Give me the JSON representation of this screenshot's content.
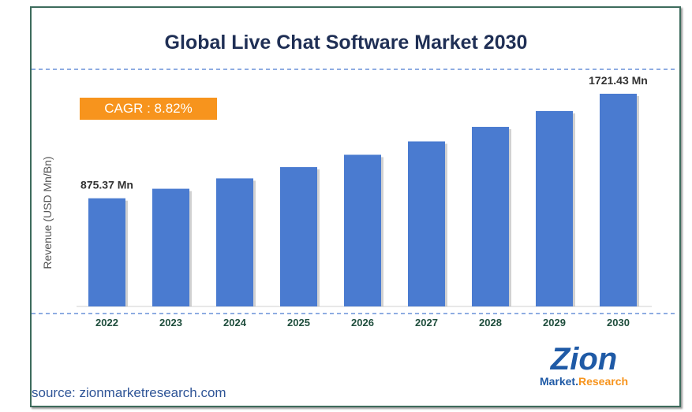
{
  "chart_data": {
    "type": "bar",
    "title": "Global Live Chat Software Market 2030",
    "ylabel": "Revenue (USD Mn/Bn)",
    "categories": [
      "2022",
      "2023",
      "2024",
      "2025",
      "2026",
      "2027",
      "2028",
      "2029",
      "2030"
    ],
    "values": [
      875.37,
      952.6,
      1036.6,
      1128.0,
      1227.5,
      1335.7,
      1453.5,
      1581.7,
      1721.43
    ],
    "data_labels": {
      "first": "875.37 Mn",
      "last": "1721.43 Mn"
    },
    "annotation": "CAGR : 8.82%",
    "bar_color": "#4a7bd0",
    "grid": false
  },
  "source": "source: zionmarketresearch.com",
  "logo": {
    "text_top": "Zion",
    "text_bottom": "Market.Research"
  }
}
